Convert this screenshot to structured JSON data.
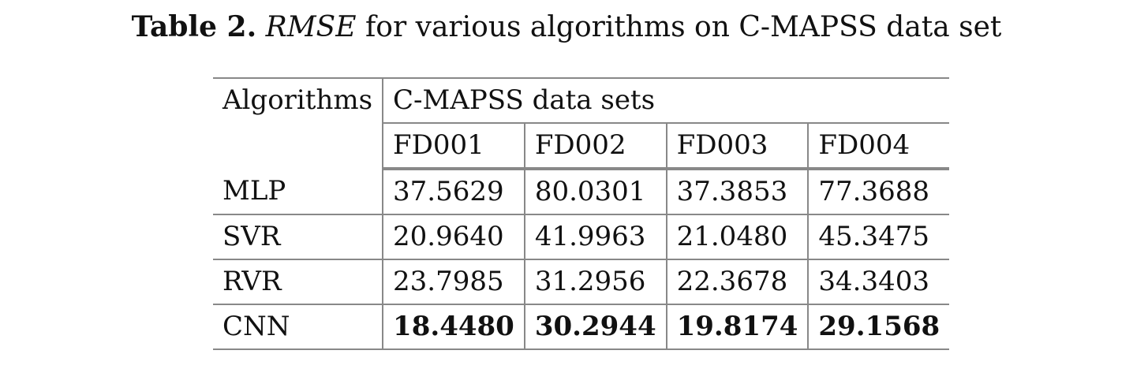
{
  "caption": {
    "label": "Table 2.",
    "italic": "RMSE",
    "rest": "for various algorithms on C-MAPSS data set"
  },
  "table": {
    "row_header": "Algorithms",
    "group_header": "C-MAPSS data sets",
    "columns": [
      "FD001",
      "FD002",
      "FD003",
      "FD004"
    ],
    "rows": [
      {
        "name": "MLP",
        "values": [
          "37.5629",
          "80.0301",
          "37.3853",
          "77.3688"
        ]
      },
      {
        "name": "SVR",
        "values": [
          "20.9640",
          "41.9963",
          "21.0480",
          "45.3475"
        ]
      },
      {
        "name": "RVR",
        "values": [
          "23.7985",
          "31.2956",
          "22.3678",
          "34.3403"
        ]
      },
      {
        "name": "CNN",
        "values": [
          "18.4480",
          "30.2944",
          "19.8174",
          "29.1568"
        ]
      }
    ]
  }
}
